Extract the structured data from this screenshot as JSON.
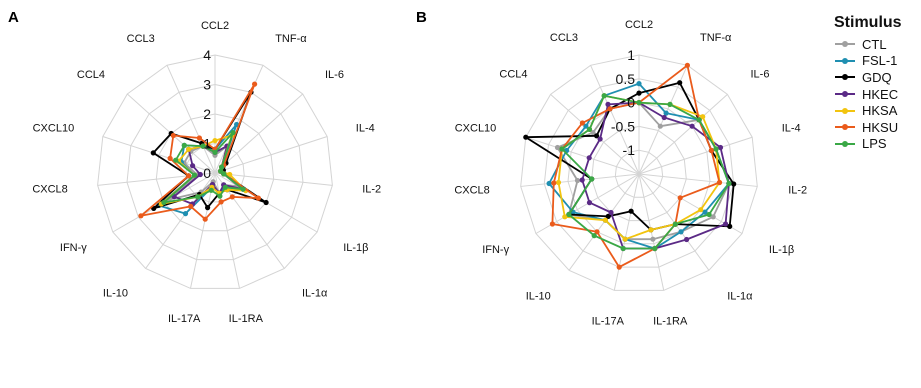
{
  "legend": {
    "title": "Stimulus",
    "items": [
      {
        "name": "CTL",
        "color": "#a0a0a0"
      },
      {
        "name": "FSL-1",
        "color": "#1f8fb1"
      },
      {
        "name": "GDQ",
        "color": "#000000"
      },
      {
        "name": "HKEC",
        "color": "#5b2a86"
      },
      {
        "name": "HKSA",
        "color": "#f2c40f"
      },
      {
        "name": "HKSU",
        "color": "#ea5b1b"
      },
      {
        "name": "LPS",
        "color": "#3aa846"
      }
    ]
  },
  "chart_data": [
    {
      "panel": "A",
      "type": "radar",
      "categories": [
        "CCL2",
        "TNF-α",
        "IL-6",
        "IL-4",
        "IL-2",
        "IL-1β",
        "IL-1α",
        "IL-1RA",
        "IL-17A",
        "IL-10",
        "IFN-γ",
        "CXCL8",
        "CXCL10",
        "CCL4",
        "CCL3"
      ],
      "rlim": [
        0,
        4
      ],
      "ticks": [
        0,
        1,
        2,
        3,
        4
      ],
      "tick_labels": [
        "0",
        "1",
        "2",
        "3",
        "4"
      ],
      "grid": true,
      "series": [
        {
          "name": "CTL",
          "values": [
            0.6,
            1.0,
            0.3,
            0.2,
            0.3,
            0.9,
            0.5,
            0.7,
            0.3,
            0.8,
            1.8,
            0.6,
            1.1,
            1.1,
            1.0
          ]
        },
        {
          "name": "FSL-1",
          "values": [
            0.8,
            1.8,
            0.3,
            0.2,
            0.3,
            1.1,
            0.6,
            0.7,
            0.5,
            1.7,
            2.2,
            0.7,
            1.2,
            1.4,
            1.0
          ]
        },
        {
          "name": "GDQ",
          "values": [
            0.8,
            3.0,
            0.5,
            0.3,
            0.3,
            2.0,
            0.7,
            0.7,
            1.2,
            0.9,
            2.4,
            0.9,
            2.2,
            2.0,
            1.1
          ]
        },
        {
          "name": "HKEC",
          "values": [
            0.7,
            1.0,
            0.3,
            0.2,
            0.3,
            1.1,
            0.5,
            0.7,
            0.4,
            1.3,
            1.6,
            0.5,
            0.8,
            1.2,
            1.0
          ]
        },
        {
          "name": "HKSA",
          "values": [
            1.1,
            1.4,
            0.3,
            0.2,
            0.5,
            1.2,
            0.7,
            0.7,
            0.5,
            1.0,
            2.1,
            0.7,
            1.3,
            1.2,
            1.0
          ]
        },
        {
          "name": "HKSU",
          "values": [
            0.8,
            3.3,
            0.4,
            0.2,
            0.3,
            1.7,
            1.0,
            1.0,
            1.6,
            1.4,
            2.9,
            0.9,
            1.6,
            1.9,
            1.3
          ]
        },
        {
          "name": "LPS",
          "values": [
            0.7,
            1.5,
            0.3,
            0.2,
            0.3,
            1.1,
            0.6,
            0.8,
            0.6,
            1.0,
            2.0,
            0.7,
            1.4,
            1.4,
            1.0
          ]
        }
      ]
    },
    {
      "panel": "B",
      "type": "radar",
      "categories": [
        "CCL2",
        "TNF-α",
        "IL-6",
        "IL-4",
        "IL-2",
        "IL-1β",
        "IL-1α",
        "IL-1RA",
        "IL-17A",
        "IL-10",
        "IFN-γ",
        "CXCL8",
        "CXCL10",
        "CCL4",
        "CCL3"
      ],
      "rlim": [
        -1.5,
        1
      ],
      "ticks": [
        -1,
        -0.5,
        0,
        0.5,
        1
      ],
      "tick_labels": [
        "-1",
        "-0.5",
        "0",
        "0.5",
        "1"
      ],
      "grid": true,
      "series": [
        {
          "name": "CTL",
          "values": [
            0.0,
            -0.4,
            0.2,
            0.2,
            0.4,
            0.3,
            0.0,
            -0.1,
            -0.1,
            -0.3,
            0.2,
            -0.2,
            0.3,
            -0.2,
            0.0
          ]
        },
        {
          "name": "FSL-1",
          "values": [
            0.4,
            -0.1,
            0.2,
            0.2,
            0.4,
            0.1,
            0.0,
            0.1,
            -0.1,
            -0.3,
            0.1,
            0.4,
            0.1,
            0.0,
            0.3
          ]
        },
        {
          "name": "GDQ",
          "values": [
            0.2,
            0.6,
            0.2,
            0.1,
            0.5,
            0.7,
            -0.2,
            -0.3,
            -0.7,
            -0.4,
            0.2,
            -0.5,
            1.1,
            -0.3,
            0.0
          ]
        },
        {
          "name": "HKEC",
          "values": [
            0.0,
            -0.2,
            0.0,
            0.3,
            0.4,
            0.6,
            0.2,
            0.1,
            0.1,
            -0.5,
            -0.3,
            -0.3,
            -0.4,
            -0.4,
            0.1
          ]
        },
        {
          "name": "HKSA",
          "values": [
            0.0,
            0.1,
            0.3,
            0.2,
            0.2,
            0.0,
            -0.2,
            -0.3,
            -0.1,
            -0.3,
            0.3,
            0.2,
            0.2,
            -0.1,
            0.3
          ]
        },
        {
          "name": "HKSU",
          "values": [
            0.0,
            1.0,
            0.2,
            0.1,
            0.2,
            -0.5,
            -0.2,
            0.1,
            0.5,
            0.0,
            0.6,
            0.3,
            0.2,
            0.1,
            0.0
          ]
        },
        {
          "name": "LPS",
          "values": [
            0.0,
            0.1,
            0.2,
            0.2,
            0.4,
            0.2,
            -0.2,
            0.1,
            0.1,
            0.1,
            0.2,
            -0.5,
            0.2,
            -0.1,
            0.3
          ]
        }
      ]
    }
  ]
}
